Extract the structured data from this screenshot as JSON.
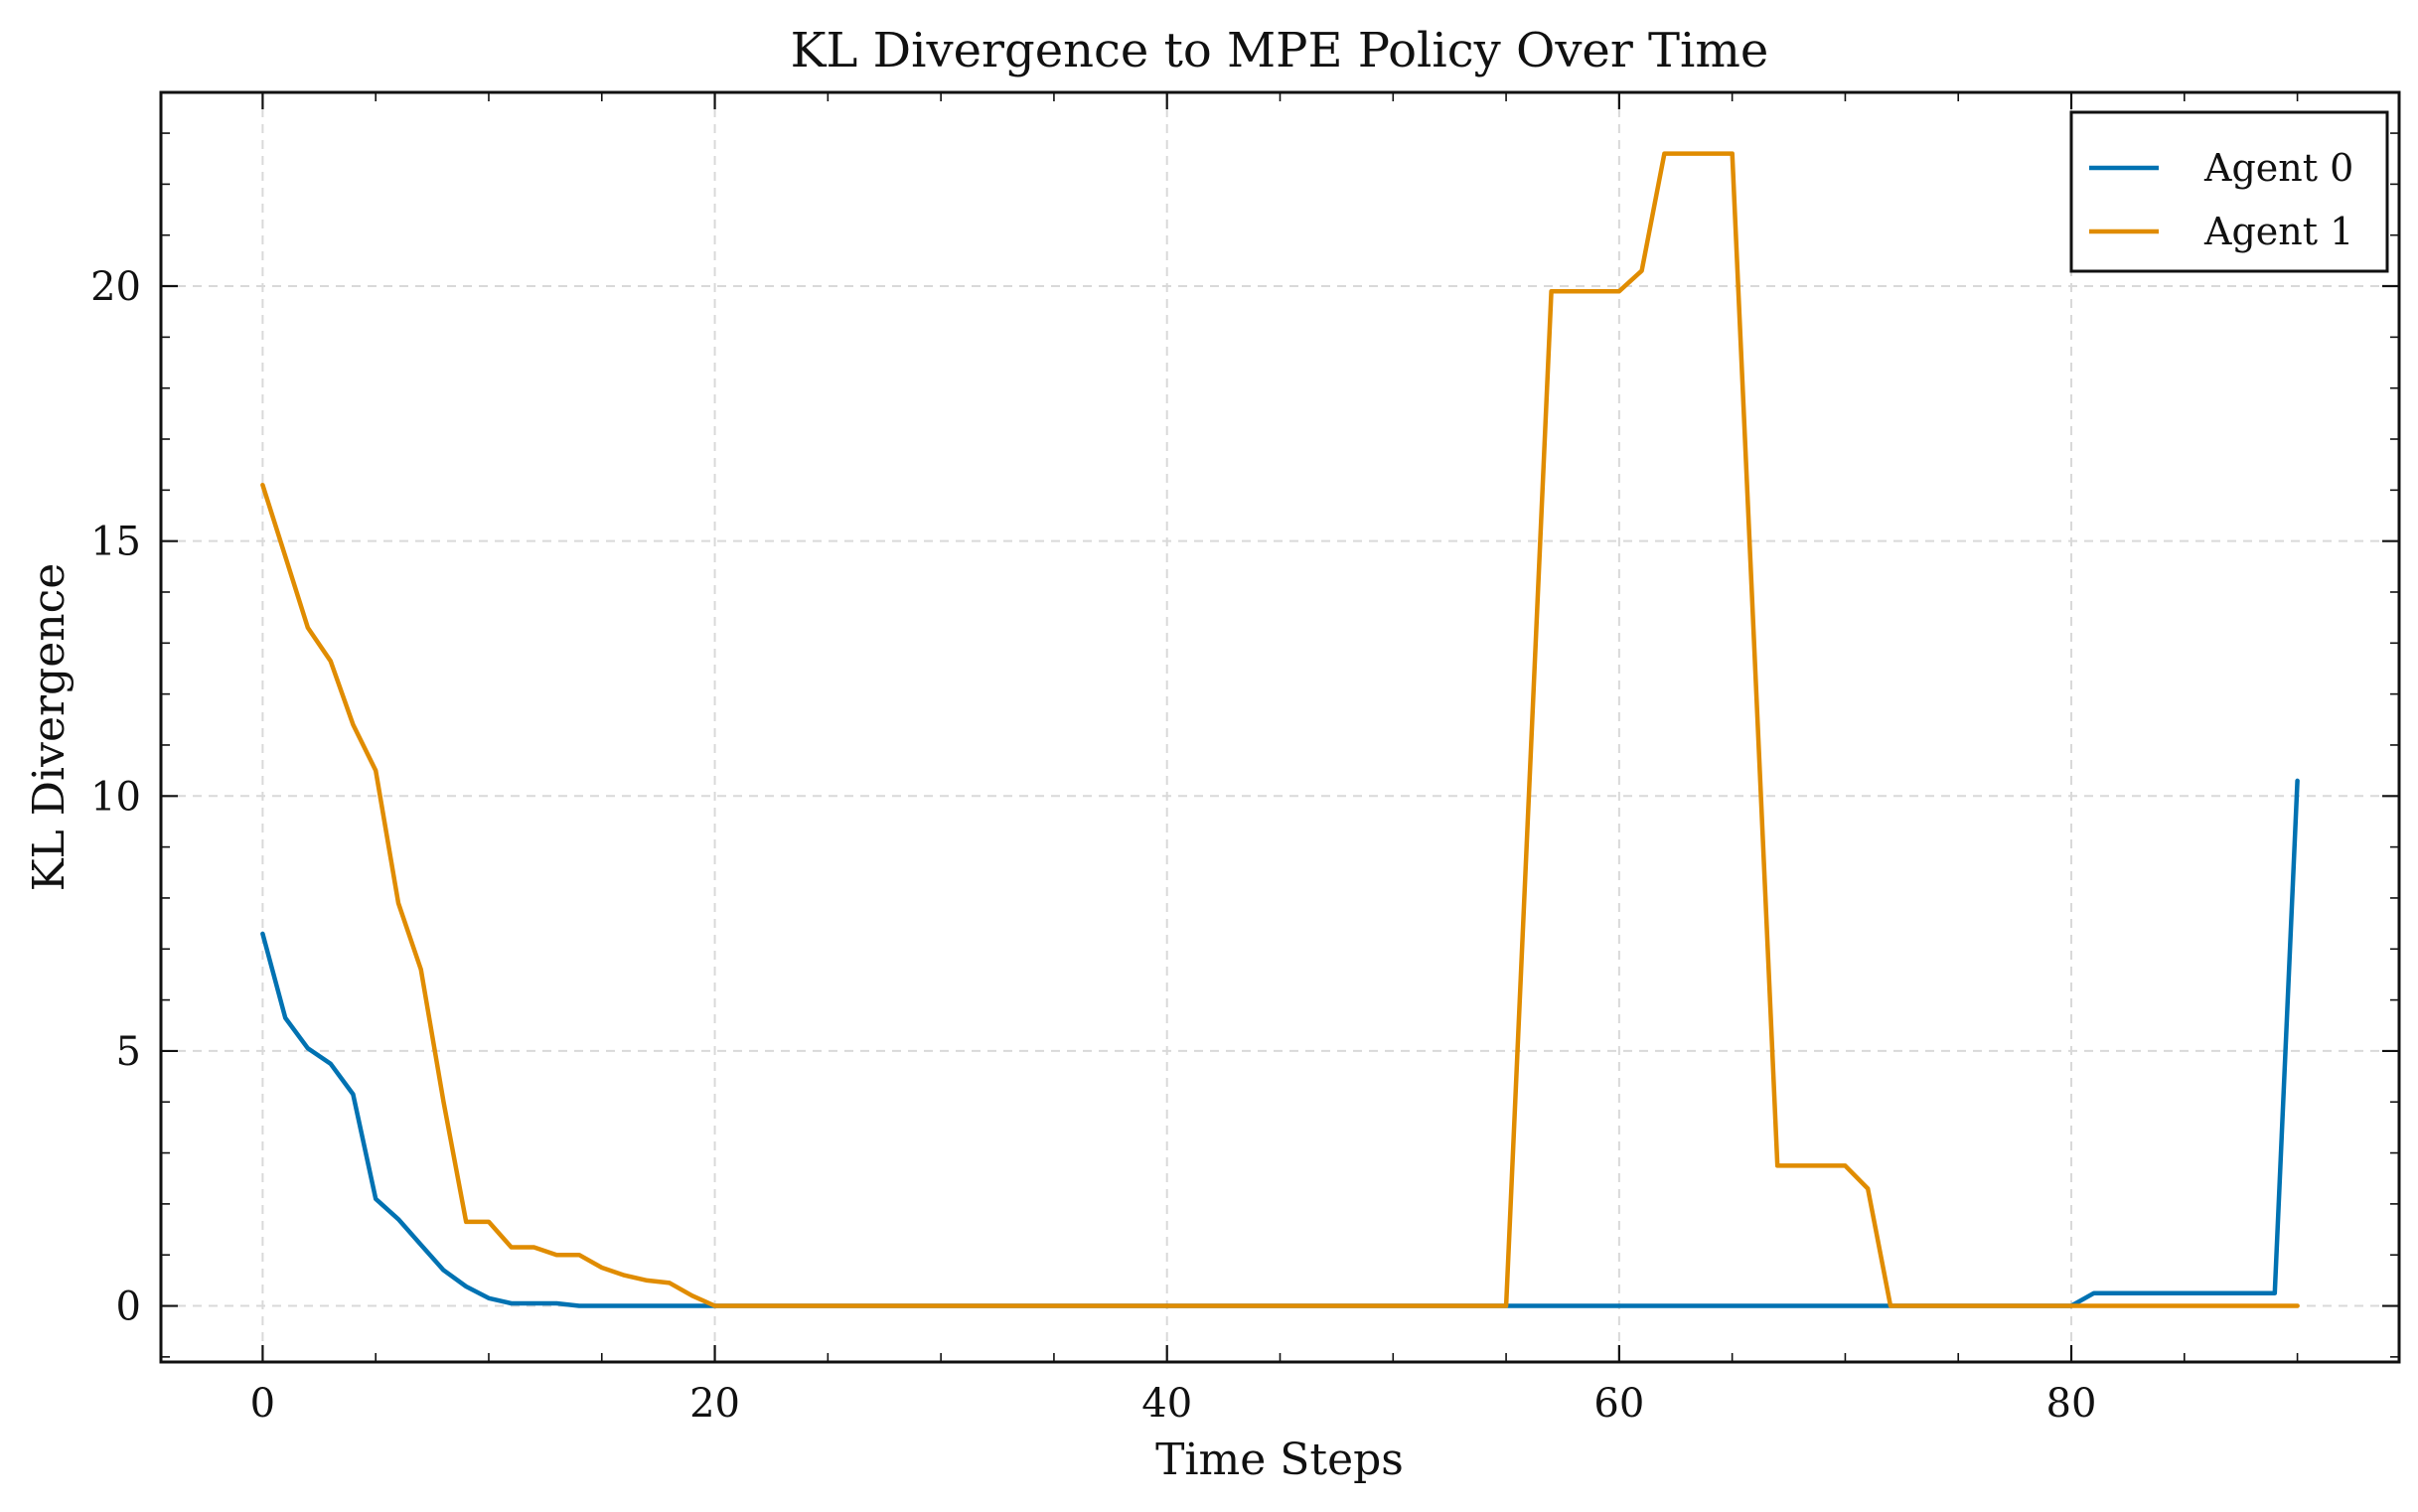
{
  "chart_data": {
    "type": "line",
    "title": "KL Divergence to MPE Policy Over Time",
    "xlabel": "Time Steps",
    "ylabel": "KL Divergence",
    "xlim": [
      -4.5,
      94.5
    ],
    "ylim": [
      -1.1,
      23.8
    ],
    "xticks": [
      0,
      20,
      40,
      60,
      80
    ],
    "xtick_labels": [
      "0",
      "20",
      "40",
      "60",
      "80"
    ],
    "yticks": [
      0,
      5,
      10,
      15,
      20
    ],
    "ytick_labels": [
      "0",
      "5",
      "10",
      "15",
      "20"
    ],
    "grid": true,
    "legend_position": "top-right",
    "series": [
      {
        "name": "Agent 0",
        "color": "#0072B2",
        "x": [
          0,
          1,
          2,
          3,
          4,
          5,
          6,
          7,
          8,
          9,
          10,
          11,
          12,
          13,
          14,
          15,
          16,
          17,
          18,
          19,
          20,
          55,
          80,
          81,
          82,
          89,
          90
        ],
        "y": [
          7.3,
          5.65,
          5.05,
          4.75,
          4.15,
          2.1,
          1.7,
          1.2,
          0.7,
          0.38,
          0.15,
          0.05,
          0.05,
          0.05,
          0.0,
          0.0,
          0.0,
          0.0,
          0.0,
          0.0,
          0.0,
          0.0,
          0.0,
          0.25,
          0.25,
          0.25,
          10.3
        ]
      },
      {
        "name": "Agent 1",
        "color": "#E08C00",
        "x": [
          0,
          1,
          2,
          3,
          4,
          5,
          6,
          7,
          8,
          9,
          10,
          11,
          12,
          13,
          14,
          15,
          16,
          17,
          18,
          19,
          20,
          55,
          57,
          58,
          59,
          60,
          61,
          62,
          63,
          64,
          65,
          67,
          68,
          69,
          70,
          71,
          72,
          80,
          90
        ],
        "y": [
          16.1,
          14.7,
          13.3,
          12.65,
          11.4,
          10.5,
          7.9,
          6.6,
          4.0,
          1.65,
          1.65,
          1.15,
          1.15,
          1.0,
          1.0,
          0.75,
          0.6,
          0.5,
          0.45,
          0.2,
          0.0,
          0.0,
          19.9,
          19.9,
          19.9,
          19.9,
          20.3,
          22.6,
          22.6,
          22.6,
          22.6,
          2.75,
          2.75,
          2.75,
          2.75,
          2.3,
          0.0,
          0.0,
          0.0
        ]
      }
    ]
  }
}
